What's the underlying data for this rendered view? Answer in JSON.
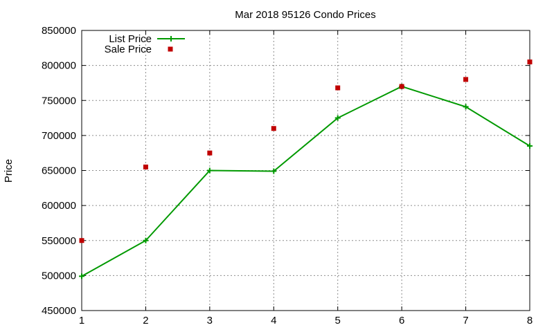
{
  "chart_data": {
    "type": "line",
    "title": "Mar 2018 95126 Condo Prices",
    "xlabel": "",
    "ylabel": "Price",
    "x": [
      1,
      2,
      3,
      4,
      5,
      6,
      7,
      8
    ],
    "xlim": [
      1,
      8
    ],
    "ylim": [
      450000,
      850000
    ],
    "yticks": [
      450000,
      500000,
      550000,
      600000,
      650000,
      700000,
      750000,
      800000,
      850000
    ],
    "xticks": [
      1,
      2,
      3,
      4,
      5,
      6,
      7,
      8
    ],
    "grid": true,
    "legend_position": "top-left",
    "series": [
      {
        "name": "List Price",
        "style": "line-plus",
        "color": "#009900",
        "values": [
          499000,
          550000,
          650000,
          649000,
          725000,
          770000,
          741000,
          685000
        ]
      },
      {
        "name": "Sale Price",
        "style": "square-points",
        "color": "#c00000",
        "values": [
          550000,
          655000,
          675000,
          710000,
          768000,
          770000,
          780000,
          805000
        ]
      }
    ]
  }
}
